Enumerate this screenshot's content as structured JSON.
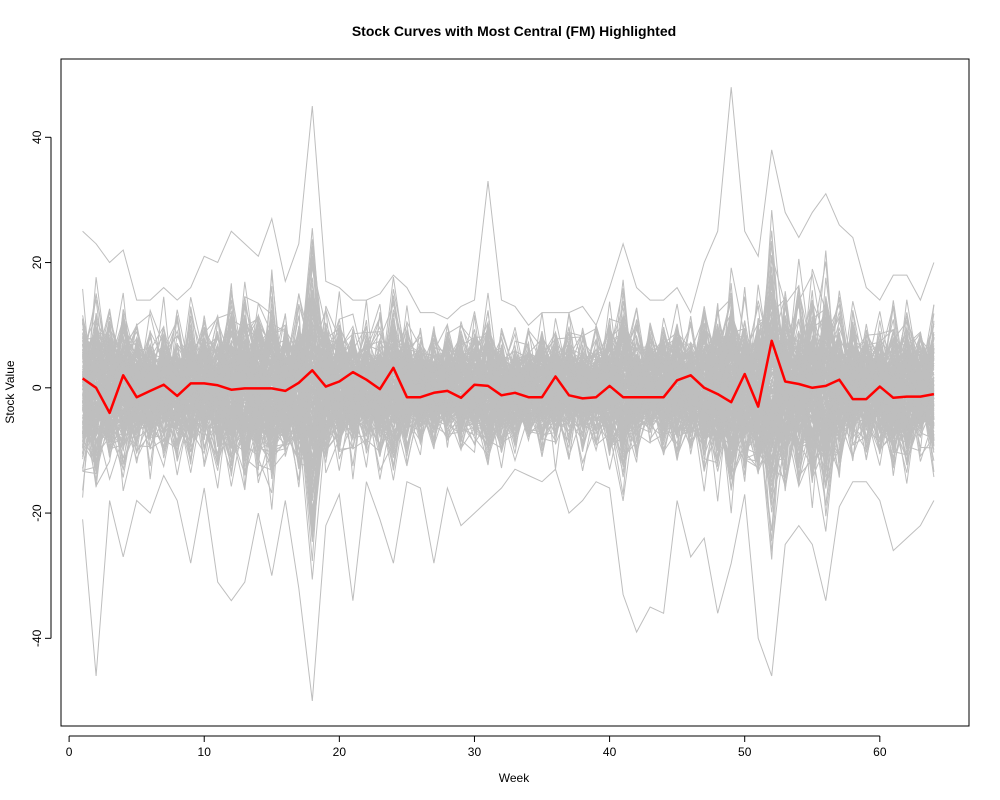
{
  "chart_data": {
    "type": "line",
    "title": "Stock Curves with Most Central (FM) Highlighted",
    "xlabel": "Week",
    "ylabel": "Stock Value",
    "xlim": [
      -0.6,
      66.6
    ],
    "ylim": [
      -54,
      52.5
    ],
    "x_ticks": [
      0,
      10,
      20,
      30,
      40,
      50,
      60
    ],
    "y_ticks": [
      -40,
      -20,
      0,
      20,
      40
    ],
    "x": [
      1,
      2,
      3,
      4,
      5,
      6,
      7,
      8,
      9,
      10,
      11,
      12,
      13,
      14,
      15,
      16,
      17,
      18,
      19,
      20,
      21,
      22,
      23,
      24,
      25,
      26,
      27,
      28,
      29,
      30,
      31,
      32,
      33,
      34,
      35,
      36,
      37,
      38,
      39,
      40,
      41,
      42,
      43,
      44,
      45,
      46,
      47,
      48,
      49,
      50,
      51,
      52,
      53,
      54,
      55,
      56,
      57,
      58,
      59,
      60,
      61,
      62,
      63,
      64
    ],
    "background_series_count": 200,
    "background_series_color": "#bebebe",
    "highlight_series_color": "#ff0000",
    "highlight_series": {
      "values": [
        1.5,
        0,
        -4,
        2,
        -1.5,
        -0.5,
        0.5,
        -1.3,
        0.7,
        0.7,
        0.4,
        -0.3,
        -0.1,
        -0.1,
        -0.1,
        -0.5,
        0.8,
        2.8,
        0.2,
        1.0,
        2.5,
        1.3,
        -0.2,
        3.2,
        -1.5,
        -1.5,
        -0.8,
        -0.5,
        -1.6,
        0.5,
        0.3,
        -1.2,
        -0.8,
        -1.5,
        -1.5,
        1.8,
        -1.2,
        -1.7,
        -1.5,
        0.3,
        -1.5,
        -1.5,
        -1.5,
        -1.5,
        1.2,
        2.0,
        0.0,
        -1.0,
        -2.3,
        2.2,
        -3.0,
        7.5,
        1.0,
        0.6,
        0.0,
        0.3,
        1.3,
        -1.8,
        -1.8,
        0.2,
        -1.6,
        -1.4,
        -1.4,
        -1.0
      ]
    },
    "envelope": {
      "upper": [
        25,
        23,
        20,
        22,
        14,
        14,
        16,
        14,
        16,
        21,
        20,
        25,
        23,
        21,
        27,
        17,
        23,
        45,
        17,
        16,
        14,
        14,
        15,
        18,
        16,
        12,
        12,
        11,
        13,
        14,
        33,
        14,
        13,
        10,
        12,
        12,
        12,
        13,
        10,
        16,
        23,
        16,
        14,
        14,
        16,
        12,
        20,
        25,
        48,
        25,
        21,
        38,
        28,
        24,
        28,
        31,
        26,
        24,
        16,
        14,
        18,
        18,
        14,
        20
      ],
      "lower": [
        -21,
        -46,
        -18,
        -27,
        -18,
        -20,
        -14,
        -18,
        -28,
        -16,
        -31,
        -34,
        -31,
        -20,
        -30,
        -18,
        -32,
        -50,
        -22,
        -17,
        -34,
        -15,
        -21,
        -28,
        -15,
        -16,
        -28,
        -16,
        -22,
        -20,
        -18,
        -16,
        -13,
        -14,
        -15,
        -13,
        -20,
        -18,
        -15,
        -16,
        -33,
        -39,
        -35,
        -36,
        -18,
        -27,
        -24,
        -36,
        -28,
        -17,
        -40,
        -46,
        -25,
        -22,
        -25,
        -34,
        -19,
        -15,
        -15,
        -18,
        -26,
        -24,
        -22,
        -18
      ]
    },
    "grid": false,
    "legend": "none"
  }
}
